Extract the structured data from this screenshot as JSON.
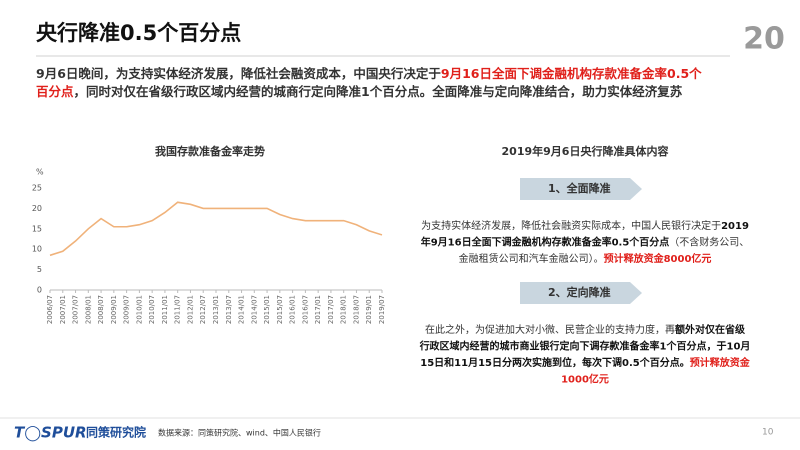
{
  "slide": {
    "title": "央行降准0.5个百分点",
    "logo_mark": "20",
    "intro": [
      [
        {
          "text": "9月6日晚间，为支持实体经济发展，降低社会融资成本，中国央行决定于",
          "emphasis": "normal"
        },
        {
          "text": "9月16日全面下调金融机构存款准备金率0.5个",
          "emphasis": "red"
        }
      ],
      [
        {
          "text": "百分点",
          "emphasis": "red"
        },
        {
          "text": "，同时对仅在省级行政区域内经营的城商行定向降准1个百分点。全面降准与定向降准结合，助力实体经济复苏",
          "emphasis": "normal"
        }
      ]
    ],
    "panel_title": "2019年9月6日央行降准具体内容",
    "sections": [
      {
        "heading": "1、全面降准",
        "lines": [
          [
            {
              "text": "为支持实体经济发展，降低社会融资实际成本，中国人民银行决定于",
              "emphasis": "normal"
            },
            {
              "text": "2019",
              "emphasis": "bold"
            }
          ],
          [
            {
              "text": "年9月16日全面下调金融机构存款准备金率0.5个百分点",
              "emphasis": "bold"
            },
            {
              "text": "（不含财务公司、",
              "emphasis": "normal"
            }
          ],
          [
            {
              "text": "金融租赁公司和汽车金融公司）。",
              "emphasis": "normal"
            },
            {
              "text": "预计释放资金8000亿元",
              "emphasis": "red"
            }
          ]
        ]
      },
      {
        "heading": "2、定向降准",
        "lines": [
          [
            {
              "text": "在此之外，为促进加大对小微、民营企业的支持力度，再",
              "emphasis": "normal"
            },
            {
              "text": "额外对仅在省级",
              "emphasis": "bold"
            }
          ],
          [
            {
              "text": "行政区域内经营的城市商业银行定向下调存款准备金率1个百分点，于10月",
              "emphasis": "bold"
            }
          ],
          [
            {
              "text": "15日和11月15日分两次实施到位，每次下调0.5个百分点。",
              "emphasis": "bold"
            },
            {
              "text": "预计释放资金",
              "emphasis": "red"
            }
          ],
          [
            {
              "text": "1000亿元",
              "emphasis": "red"
            }
          ]
        ]
      }
    ],
    "footer": {
      "brand": "T◯SPUR",
      "brand_cn": "同策研究院",
      "source": "数据来源：同策研究院、wind、中国人民银行",
      "page": "10"
    }
  },
  "chart_data": {
    "type": "line",
    "title": "我国存款准备金率走势",
    "y_unit": "%",
    "categories": [
      "2006/07",
      "2007/01",
      "2007/07",
      "2008/01",
      "2008/07",
      "2009/01",
      "2009/07",
      "2010/01",
      "2010/07",
      "2011/01",
      "2011/07",
      "2012/01",
      "2012/07",
      "2013/01",
      "2013/07",
      "2014/01",
      "2014/07",
      "2015/01",
      "2015/07",
      "2016/01",
      "2016/07",
      "2017/01",
      "2017/07",
      "2018/01",
      "2018/07",
      "2019/01",
      "2019/07"
    ],
    "series": [
      {
        "name": "存款准备金率",
        "color": "#f0b27a",
        "values": [
          8.5,
          9.5,
          12,
          15,
          17.5,
          15.5,
          15.5,
          16,
          17,
          19,
          21.5,
          21,
          20,
          20,
          20,
          20,
          20,
          20,
          18.5,
          17.5,
          17,
          17,
          17,
          17,
          16,
          14.5,
          13.5
        ]
      }
    ],
    "ylim": [
      0,
      25
    ],
    "yticks": [
      0,
      5,
      10,
      15,
      20,
      25
    ],
    "grid": false
  }
}
